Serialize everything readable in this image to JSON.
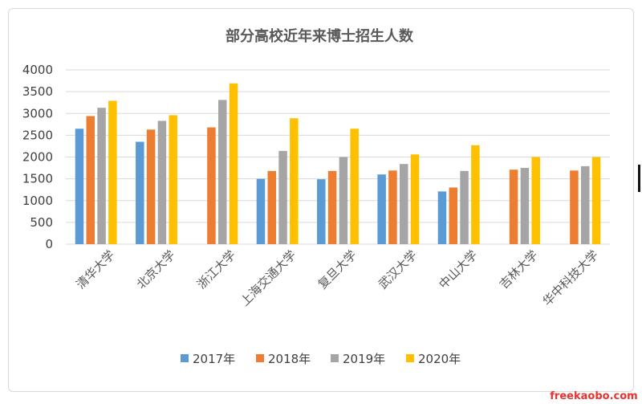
{
  "chart_data": {
    "type": "bar",
    "title": "部分高校近年来博士招生人数",
    "categories": [
      "清华大学",
      "北京大学",
      "浙江大学",
      "上海交通大学",
      "复旦大学",
      "武汉大学",
      "中山大学",
      "吉林大学",
      "华中科技大学"
    ],
    "series": [
      {
        "name": "2017年",
        "color": "#5B9BD5",
        "values": [
          2650,
          2350,
          null,
          1500,
          1490,
          1600,
          1210,
          null,
          null
        ]
      },
      {
        "name": "2018年",
        "color": "#ED7D31",
        "values": [
          2940,
          2630,
          2680,
          1680,
          1680,
          1690,
          1300,
          1710,
          1690
        ]
      },
      {
        "name": "2019年",
        "color": "#A5A5A5",
        "values": [
          3130,
          2830,
          3310,
          2140,
          2000,
          1840,
          1680,
          1750,
          1790
        ]
      },
      {
        "name": "2020年",
        "color": "#FFC000",
        "values": [
          3290,
          2960,
          3690,
          2890,
          2650,
          2060,
          2270,
          2000,
          2000
        ]
      }
    ],
    "y_ticks": [
      "0",
      "500",
      "1000",
      "1500",
      "2000",
      "2500",
      "3000",
      "3500",
      "4000"
    ],
    "ylim": [
      0,
      4000
    ],
    "grid": true,
    "legend_position": "bottom"
  },
  "watermark": "freekaobo.com"
}
